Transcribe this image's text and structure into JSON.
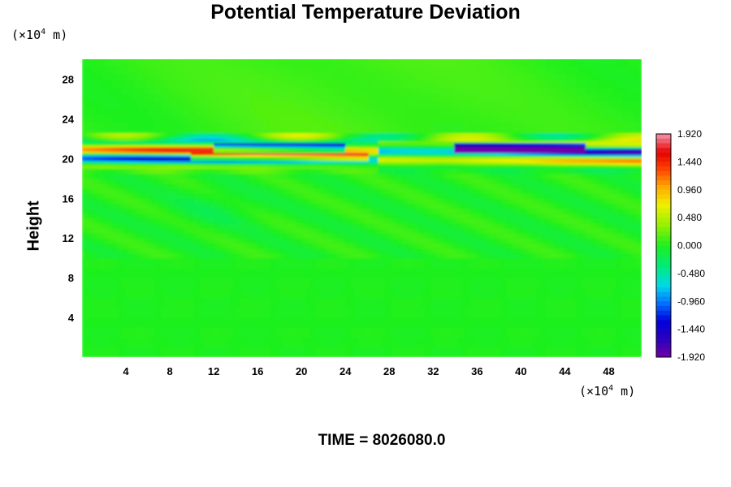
{
  "chart_data": {
    "type": "heatmap",
    "title": "Potential Temperature Deviation",
    "ylabel": "Height",
    "x_unit": {
      "prefix": "(×10",
      "exp": "4",
      "suffix": " m)"
    },
    "y_unit": {
      "prefix": "(×10",
      "exp": "4",
      "suffix": " m)"
    },
    "xlim": [
      0,
      51
    ],
    "ylim": [
      0,
      30
    ],
    "x_ticks": [
      "4",
      "8",
      "12",
      "16",
      "20",
      "24",
      "28",
      "32",
      "36",
      "40",
      "44",
      "48"
    ],
    "y_ticks": [
      "4",
      "8",
      "12",
      "16",
      "20",
      "24",
      "28"
    ],
    "colorbar": {
      "range": [
        -1.92,
        1.92
      ],
      "tick_labels": [
        "1.920",
        "1.440",
        "0.960",
        "0.480",
        "0.000",
        "-0.480",
        "-0.960",
        "-1.440",
        "-1.920"
      ]
    },
    "field_summary": [
      {
        "y_from": 0,
        "y_to": 10,
        "value": 0.0
      },
      {
        "y_from": 19,
        "y_to": 22,
        "value": "alternating ±1.9 band"
      },
      {
        "y_from": 22,
        "y_to": 30,
        "value": 0.1
      }
    ]
  },
  "footer": {
    "time_label": "TIME = 8026080.0"
  }
}
